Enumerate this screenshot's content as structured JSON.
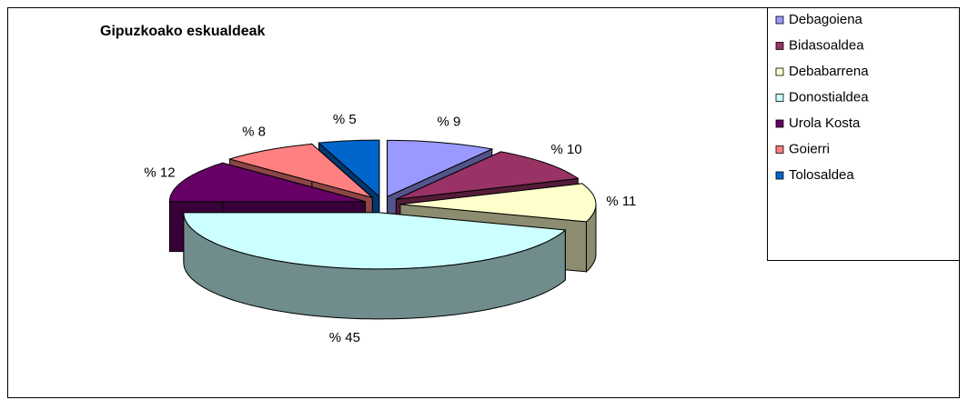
{
  "chart_data": {
    "type": "pie",
    "title": "Gipuzkoako eskualdeak",
    "categories": [
      "Debagoiena",
      "Bidasoaldea",
      "Debabarrena",
      "Donostialdea",
      "Urola Kosta",
      "Goierri",
      "Tolosaldea"
    ],
    "values": [
      9,
      10,
      11,
      45,
      12,
      8,
      5
    ],
    "value_labels": [
      "% 9",
      "% 10",
      "% 11",
      "% 45",
      "% 12",
      "% 8",
      "% 5"
    ],
    "colors": [
      "#9999ff",
      "#993366",
      "#ffffcc",
      "#ccffff",
      "#660066",
      "#ff8080",
      "#0066cc"
    ],
    "legend": "right"
  }
}
